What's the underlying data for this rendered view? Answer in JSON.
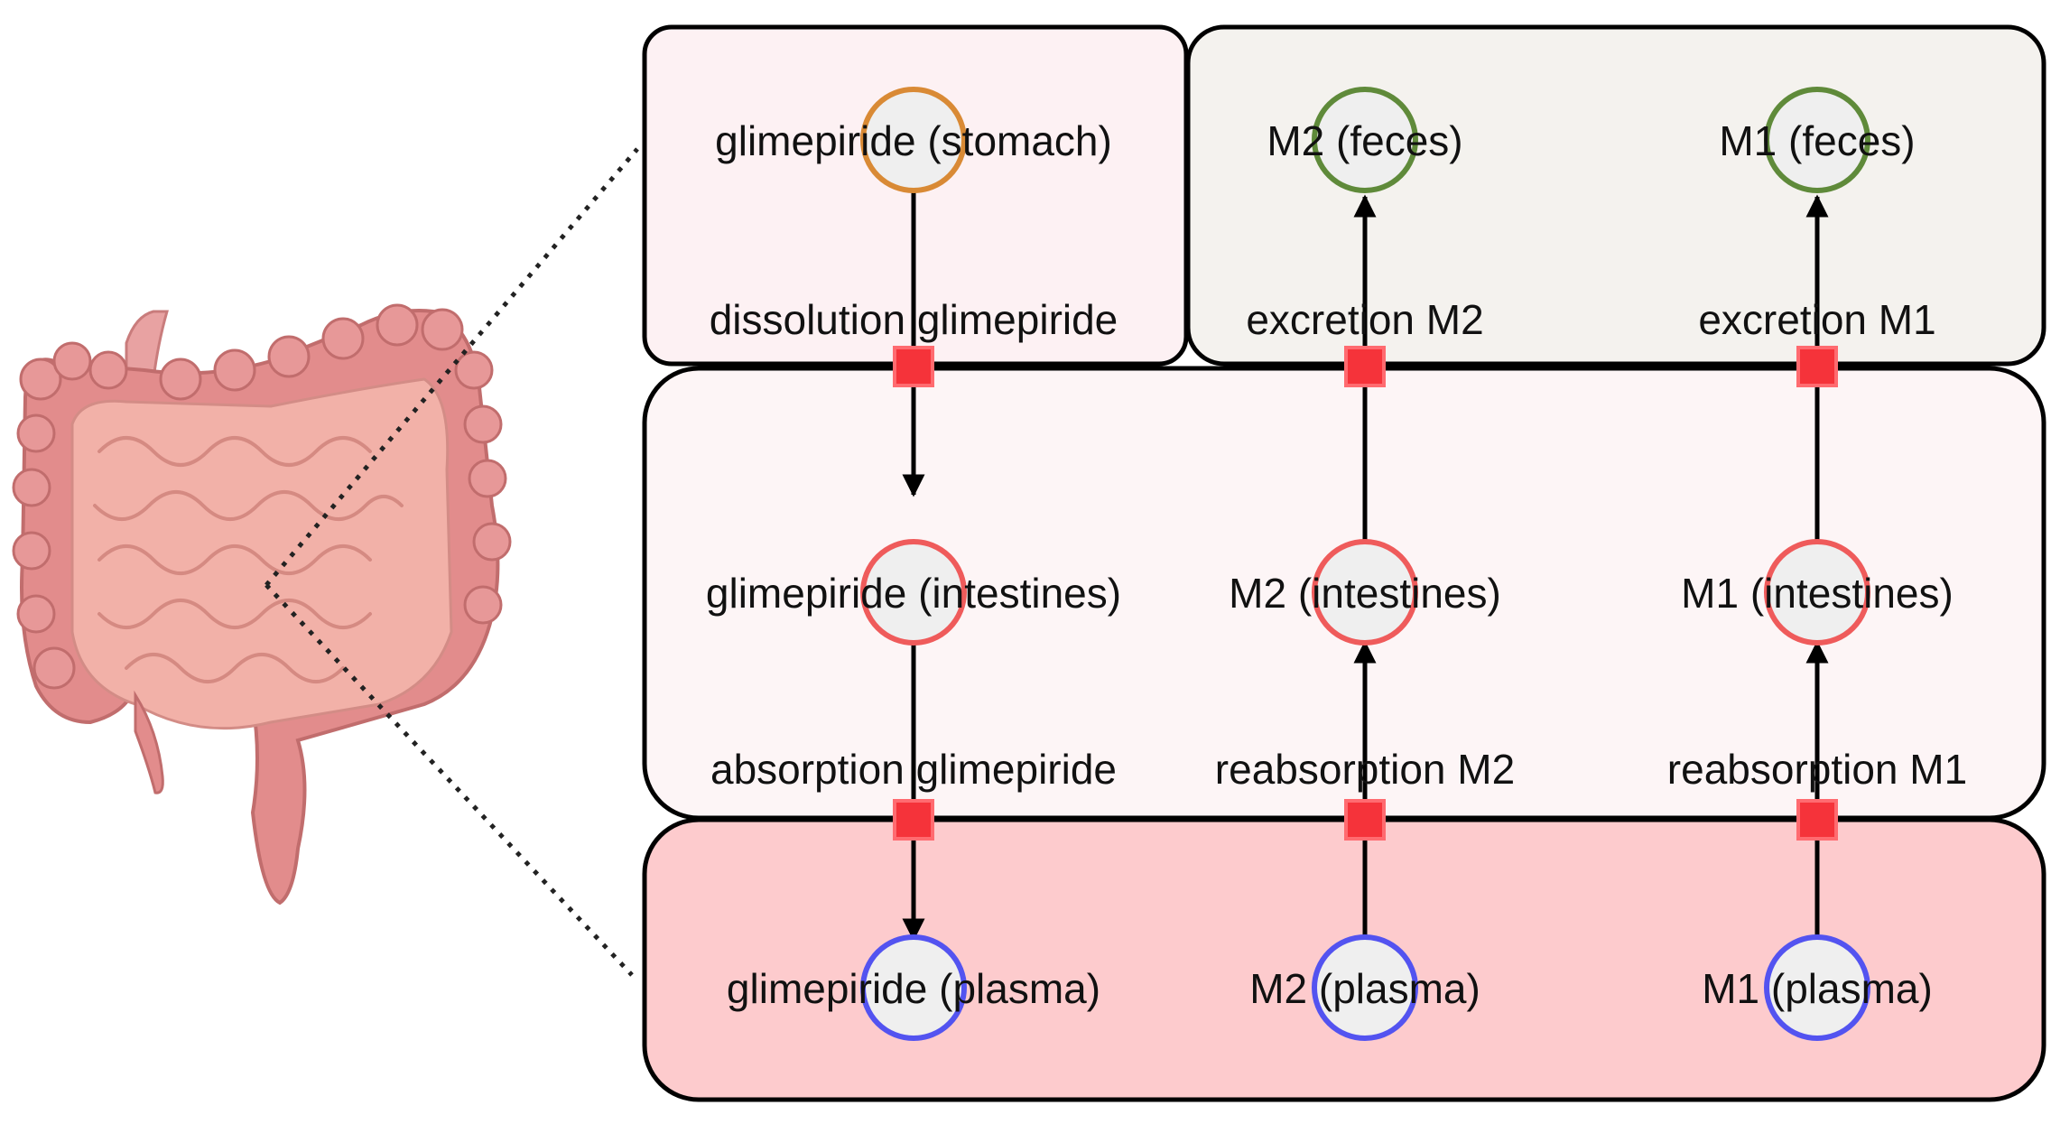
{
  "colors": {
    "stomach_fill": "#fdf1f3",
    "feces_fill": "#f4f2ee",
    "intestines_fill": "#fdf5f6",
    "plasma_fill": "#fdcbcd",
    "node_fill": "#efefef",
    "stomach_node": "#d98a35",
    "feces_node": "#5f8a3a",
    "intestines_node": "#ef5b5b",
    "plasma_node": "#5353f0",
    "reaction_marker": "#f5333a"
  },
  "nodes": {
    "glim_stomach": "glimepiride (stomach)",
    "m2_feces": "M2 (feces)",
    "m1_feces": "M1 (feces)",
    "glim_intestines": "glimepiride (intestines)",
    "m2_intestines": "M2 (intestines)",
    "m1_intestines": "M1 (intestines)",
    "glim_plasma": "glimepiride (plasma)",
    "m2_plasma": "M2 (plasma)",
    "m1_plasma": "M1 (plasma)"
  },
  "reactions": {
    "dissolution": "dissolution glimepiride",
    "excretion_m2": "excretion M2",
    "excretion_m1": "excretion M1",
    "absorption": "absorption glimepiride",
    "reabsorption_m2": "reabsorption M2",
    "reabsorption_m1": "reabsorption M1"
  },
  "illustration": "intestines-illustration"
}
